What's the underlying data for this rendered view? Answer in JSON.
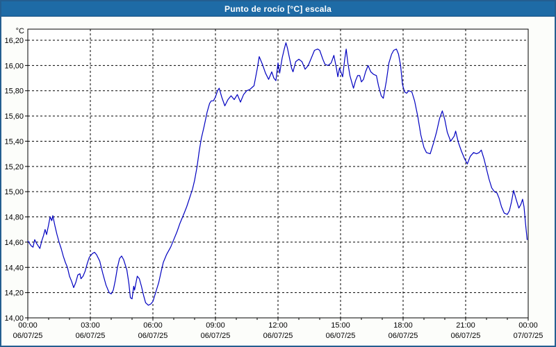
{
  "window": {
    "title": "Punto de rocío [°C] escala"
  },
  "colors": {
    "titlebar_bg": "#1e6ba6",
    "titlebar_text": "#ffffff",
    "window_border": "#245e90",
    "content_bg": "#fcfdfa",
    "plot_bg": "#ffffff",
    "grid": "#000000",
    "axis": "#000000",
    "label_text": "#000000",
    "line": "#0000c0"
  },
  "chart_data": {
    "type": "line",
    "title": "Punto de rocío [°C] escala",
    "y_unit_label": "°C",
    "ylabel": "",
    "xlabel": "",
    "ylim": [
      14.0,
      16.2
    ],
    "ytick_step": 0.2,
    "yticks": [
      {
        "v": 14.0,
        "label": "14,00"
      },
      {
        "v": 14.2,
        "label": "14,20"
      },
      {
        "v": 14.4,
        "label": "14,40"
      },
      {
        "v": 14.6,
        "label": "14,60"
      },
      {
        "v": 14.8,
        "label": "14,80"
      },
      {
        "v": 15.0,
        "label": "15,00"
      },
      {
        "v": 15.2,
        "label": "15,20"
      },
      {
        "v": 15.4,
        "label": "15,40"
      },
      {
        "v": 15.6,
        "label": "15,60"
      },
      {
        "v": 15.8,
        "label": "15,80"
      },
      {
        "v": 16.0,
        "label": "16,00"
      },
      {
        "v": 16.2,
        "label": "16,20"
      }
    ],
    "xlim_hours": [
      0,
      24
    ],
    "xtick_step_hours": 3,
    "x_minor_tick_hours": 1,
    "xticks": [
      {
        "h": 0,
        "time": "00:00",
        "date": "06/07/25"
      },
      {
        "h": 3,
        "time": "03:00",
        "date": "06/07/25"
      },
      {
        "h": 6,
        "time": "06:00",
        "date": "06/07/25"
      },
      {
        "h": 9,
        "time": "09:00",
        "date": "06/07/25"
      },
      {
        "h": 12,
        "time": "12:00",
        "date": "06/07/25"
      },
      {
        "h": 15,
        "time": "15:00",
        "date": "06/07/25"
      },
      {
        "h": 18,
        "time": "18:00",
        "date": "06/07/25"
      },
      {
        "h": 21,
        "time": "21:00",
        "date": "06/07/25"
      },
      {
        "h": 24,
        "time": "00:00",
        "date": "07/07/25"
      }
    ],
    "grid": "dashed",
    "legend": "none",
    "series": [
      {
        "name": "Punto de rocío [°C]",
        "color": "#0000c0",
        "points": [
          [
            0.0,
            14.61
          ],
          [
            0.08,
            14.59
          ],
          [
            0.17,
            14.57
          ],
          [
            0.25,
            14.56
          ],
          [
            0.33,
            14.62
          ],
          [
            0.42,
            14.59
          ],
          [
            0.5,
            14.57
          ],
          [
            0.58,
            14.55
          ],
          [
            0.67,
            14.61
          ],
          [
            0.75,
            14.65
          ],
          [
            0.83,
            14.7
          ],
          [
            0.9,
            14.66
          ],
          [
            1.0,
            14.74
          ],
          [
            1.07,
            14.8
          ],
          [
            1.15,
            14.77
          ],
          [
            1.2,
            14.81
          ],
          [
            1.3,
            14.73
          ],
          [
            1.4,
            14.66
          ],
          [
            1.5,
            14.6
          ],
          [
            1.6,
            14.55
          ],
          [
            1.7,
            14.49
          ],
          [
            1.8,
            14.44
          ],
          [
            1.9,
            14.4
          ],
          [
            2.0,
            14.33
          ],
          [
            2.1,
            14.29
          ],
          [
            2.2,
            14.24
          ],
          [
            2.3,
            14.28
          ],
          [
            2.4,
            14.34
          ],
          [
            2.5,
            14.35
          ],
          [
            2.55,
            14.31
          ],
          [
            2.65,
            14.33
          ],
          [
            2.75,
            14.37
          ],
          [
            2.85,
            14.43
          ],
          [
            2.95,
            14.48
          ],
          [
            3.1,
            14.51
          ],
          [
            3.2,
            14.52
          ],
          [
            3.3,
            14.5
          ],
          [
            3.45,
            14.45
          ],
          [
            3.6,
            14.35
          ],
          [
            3.75,
            14.26
          ],
          [
            3.9,
            14.2
          ],
          [
            4.0,
            14.19
          ],
          [
            4.1,
            14.22
          ],
          [
            4.2,
            14.3
          ],
          [
            4.3,
            14.4
          ],
          [
            4.4,
            14.47
          ],
          [
            4.5,
            14.49
          ],
          [
            4.6,
            14.46
          ],
          [
            4.75,
            14.38
          ],
          [
            4.85,
            14.27
          ],
          [
            4.92,
            14.16
          ],
          [
            5.0,
            14.15
          ],
          [
            5.08,
            14.25
          ],
          [
            5.12,
            14.22
          ],
          [
            5.25,
            14.33
          ],
          [
            5.35,
            14.31
          ],
          [
            5.45,
            14.25
          ],
          [
            5.55,
            14.18
          ],
          [
            5.65,
            14.12
          ],
          [
            5.78,
            14.1
          ],
          [
            5.9,
            14.11
          ],
          [
            6.0,
            14.13
          ],
          [
            6.15,
            14.21
          ],
          [
            6.28,
            14.28
          ],
          [
            6.4,
            14.37
          ],
          [
            6.5,
            14.44
          ],
          [
            6.65,
            14.5
          ],
          [
            6.85,
            14.56
          ],
          [
            7.0,
            14.62
          ],
          [
            7.15,
            14.68
          ],
          [
            7.3,
            14.75
          ],
          [
            7.5,
            14.83
          ],
          [
            7.62,
            14.88
          ],
          [
            7.76,
            14.95
          ],
          [
            7.9,
            15.02
          ],
          [
            8.0,
            15.09
          ],
          [
            8.12,
            15.2
          ],
          [
            8.22,
            15.32
          ],
          [
            8.32,
            15.42
          ],
          [
            8.46,
            15.52
          ],
          [
            8.6,
            15.63
          ],
          [
            8.72,
            15.7
          ],
          [
            8.8,
            15.72
          ],
          [
            8.9,
            15.72
          ],
          [
            9.0,
            15.75
          ],
          [
            9.1,
            15.8
          ],
          [
            9.18,
            15.82
          ],
          [
            9.3,
            15.75
          ],
          [
            9.45,
            15.68
          ],
          [
            9.6,
            15.73
          ],
          [
            9.75,
            15.76
          ],
          [
            9.9,
            15.73
          ],
          [
            10.05,
            15.77
          ],
          [
            10.2,
            15.71
          ],
          [
            10.35,
            15.77
          ],
          [
            10.5,
            15.8
          ],
          [
            10.65,
            15.81
          ],
          [
            10.85,
            15.84
          ],
          [
            11.0,
            15.97
          ],
          [
            11.1,
            16.07
          ],
          [
            11.25,
            16.01
          ],
          [
            11.4,
            15.94
          ],
          [
            11.55,
            15.89
          ],
          [
            11.7,
            15.95
          ],
          [
            11.8,
            15.9
          ],
          [
            11.9,
            15.88
          ],
          [
            12.0,
            16.02
          ],
          [
            12.08,
            15.94
          ],
          [
            12.2,
            16.06
          ],
          [
            12.3,
            16.13
          ],
          [
            12.38,
            16.18
          ],
          [
            12.45,
            16.14
          ],
          [
            12.55,
            16.06
          ],
          [
            12.65,
            15.98
          ],
          [
            12.72,
            15.95
          ],
          [
            12.85,
            16.03
          ],
          [
            13.0,
            16.05
          ],
          [
            13.15,
            16.03
          ],
          [
            13.3,
            15.97
          ],
          [
            13.45,
            16.0
          ],
          [
            13.6,
            16.06
          ],
          [
            13.75,
            16.12
          ],
          [
            13.9,
            16.13
          ],
          [
            14.0,
            16.12
          ],
          [
            14.15,
            16.05
          ],
          [
            14.25,
            16.01
          ],
          [
            14.4,
            16.0
          ],
          [
            14.55,
            16.02
          ],
          [
            14.68,
            16.08
          ],
          [
            14.8,
            15.98
          ],
          [
            14.87,
            15.91
          ],
          [
            14.95,
            15.98
          ],
          [
            15.1,
            15.91
          ],
          [
            15.2,
            16.05
          ],
          [
            15.27,
            16.13
          ],
          [
            15.35,
            16.02
          ],
          [
            15.45,
            15.92
          ],
          [
            15.55,
            15.86
          ],
          [
            15.62,
            15.82
          ],
          [
            15.72,
            15.88
          ],
          [
            15.82,
            15.92
          ],
          [
            15.92,
            15.92
          ],
          [
            16.0,
            15.87
          ],
          [
            16.1,
            15.89
          ],
          [
            16.2,
            15.95
          ],
          [
            16.32,
            16.0
          ],
          [
            16.45,
            15.95
          ],
          [
            16.58,
            15.93
          ],
          [
            16.72,
            15.92
          ],
          [
            16.82,
            15.84
          ],
          [
            16.95,
            15.76
          ],
          [
            17.05,
            15.74
          ],
          [
            17.2,
            15.88
          ],
          [
            17.32,
            16.02
          ],
          [
            17.45,
            16.09
          ],
          [
            17.55,
            16.12
          ],
          [
            17.68,
            16.13
          ],
          [
            17.78,
            16.09
          ],
          [
            17.88,
            16.0
          ],
          [
            17.97,
            15.85
          ],
          [
            18.07,
            15.79
          ],
          [
            18.17,
            15.78
          ],
          [
            18.27,
            15.8
          ],
          [
            18.42,
            15.79
          ],
          [
            18.55,
            15.72
          ],
          [
            18.7,
            15.6
          ],
          [
            18.85,
            15.45
          ],
          [
            19.0,
            15.35
          ],
          [
            19.12,
            15.31
          ],
          [
            19.3,
            15.3
          ],
          [
            19.45,
            15.38
          ],
          [
            19.6,
            15.47
          ],
          [
            19.75,
            15.58
          ],
          [
            19.88,
            15.64
          ],
          [
            20.0,
            15.57
          ],
          [
            20.12,
            15.47
          ],
          [
            20.28,
            15.4
          ],
          [
            20.45,
            15.44
          ],
          [
            20.52,
            15.48
          ],
          [
            20.65,
            15.39
          ],
          [
            20.8,
            15.32
          ],
          [
            20.95,
            15.26
          ],
          [
            21.08,
            15.22
          ],
          [
            21.22,
            15.28
          ],
          [
            21.38,
            15.31
          ],
          [
            21.52,
            15.3
          ],
          [
            21.65,
            15.31
          ],
          [
            21.75,
            15.33
          ],
          [
            21.88,
            15.26
          ],
          [
            22.0,
            15.18
          ],
          [
            22.12,
            15.1
          ],
          [
            22.25,
            15.03
          ],
          [
            22.38,
            15.0
          ],
          [
            22.5,
            14.99
          ],
          [
            22.6,
            14.95
          ],
          [
            22.72,
            14.88
          ],
          [
            22.85,
            14.83
          ],
          [
            23.0,
            14.82
          ],
          [
            23.1,
            14.85
          ],
          [
            23.2,
            14.92
          ],
          [
            23.3,
            15.01
          ],
          [
            23.42,
            14.94
          ],
          [
            23.55,
            14.87
          ],
          [
            23.65,
            14.9
          ],
          [
            23.73,
            14.94
          ],
          [
            23.8,
            14.88
          ],
          [
            23.87,
            14.75
          ],
          [
            23.95,
            14.62
          ]
        ]
      }
    ]
  }
}
